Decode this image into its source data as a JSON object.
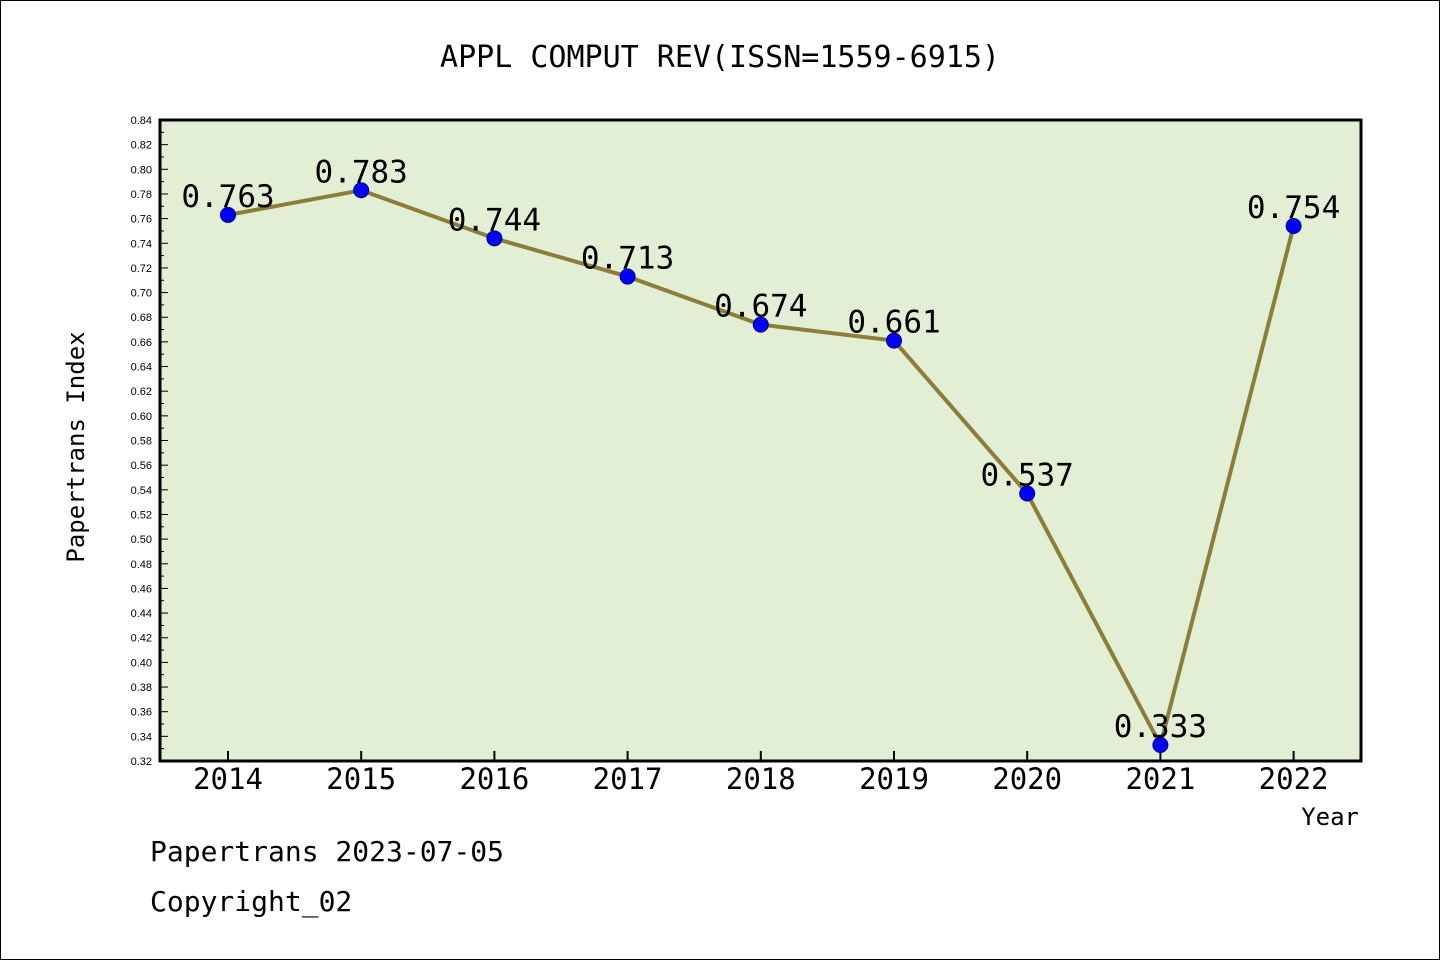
{
  "chart_data": {
    "type": "line",
    "title": "APPL COMPUT REV(ISSN=1559-6915)",
    "xlabel": "Year",
    "ylabel": "Papertrans Index",
    "categories": [
      "2014",
      "2015",
      "2016",
      "2017",
      "2018",
      "2019",
      "2020",
      "2021",
      "2022"
    ],
    "series": [
      {
        "values": [
          0.763,
          0.783,
          0.744,
          0.713,
          0.674,
          0.661,
          0.537,
          0.333,
          0.754
        ],
        "data_labels": [
          "0.763",
          "0.783",
          "0.744",
          "0.713",
          "0.674",
          "0.661",
          "0.537",
          "0.333",
          "0.754"
        ]
      }
    ],
    "ylim": [
      0.32,
      0.84
    ],
    "ytick_step": 0.02,
    "grid": false,
    "legend": "none",
    "colors": {
      "plot_background": "#e2efd5",
      "line": "#8c7d3a",
      "marker": "#0000ff"
    }
  },
  "footer": {
    "line1": "Papertrans 2023-07-05",
    "line2": "Copyright_02"
  }
}
